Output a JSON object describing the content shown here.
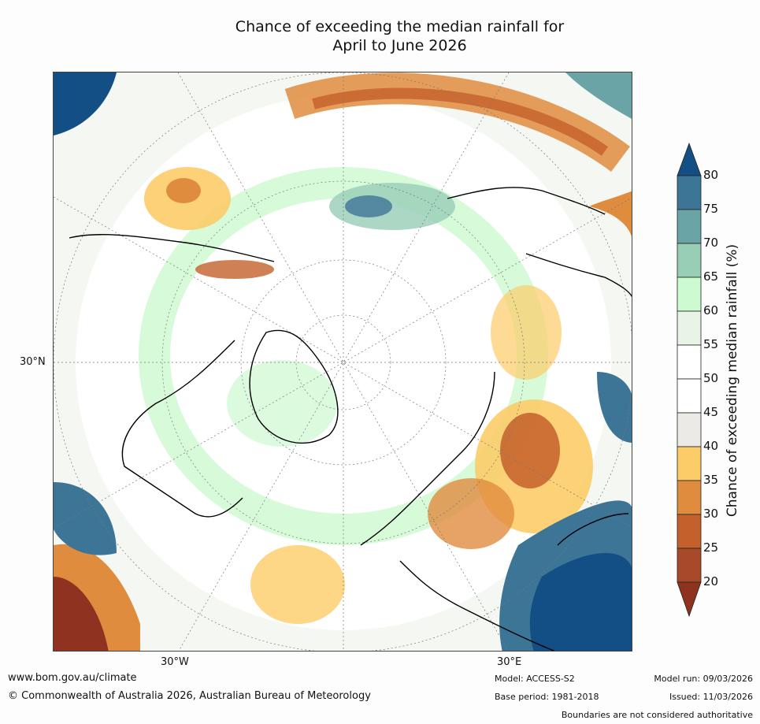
{
  "title": {
    "line1": "Chance of exceeding the median rainfall for",
    "line2": "April to June 2026"
  },
  "axes": {
    "left_label": "30°N",
    "bottom_labels": [
      "30°W",
      "30°E"
    ]
  },
  "colorbar": {
    "title": "Chance of exceeding median rainfall (%)",
    "ticks": [
      "80",
      "75",
      "70",
      "65",
      "60",
      "55",
      "50",
      "45",
      "40",
      "35",
      "30",
      "25",
      "20"
    ],
    "colors": [
      "#134e85",
      "#3d7597",
      "#6aa4a6",
      "#98cdb6",
      "#cdfad0",
      "#e8f5e6",
      "#ffffff",
      "#ffffff",
      "#eceae6",
      "#fccc68",
      "#e08c3f",
      "#c4602b",
      "#a84a2a",
      "#8f3320"
    ]
  },
  "footer": {
    "website": "www.bom.gov.au/climate",
    "copyright": "© Commonwealth of Australia 2026, Australian Bureau of Meteorology",
    "model": "Model: ACCESS-S2",
    "base_period": "Base period: 1981-2018",
    "model_run": "Model run: 09/03/2026",
    "issued": "Issued: 11/03/2026",
    "disclaimer": "Boundaries are not considered authoritative"
  }
}
